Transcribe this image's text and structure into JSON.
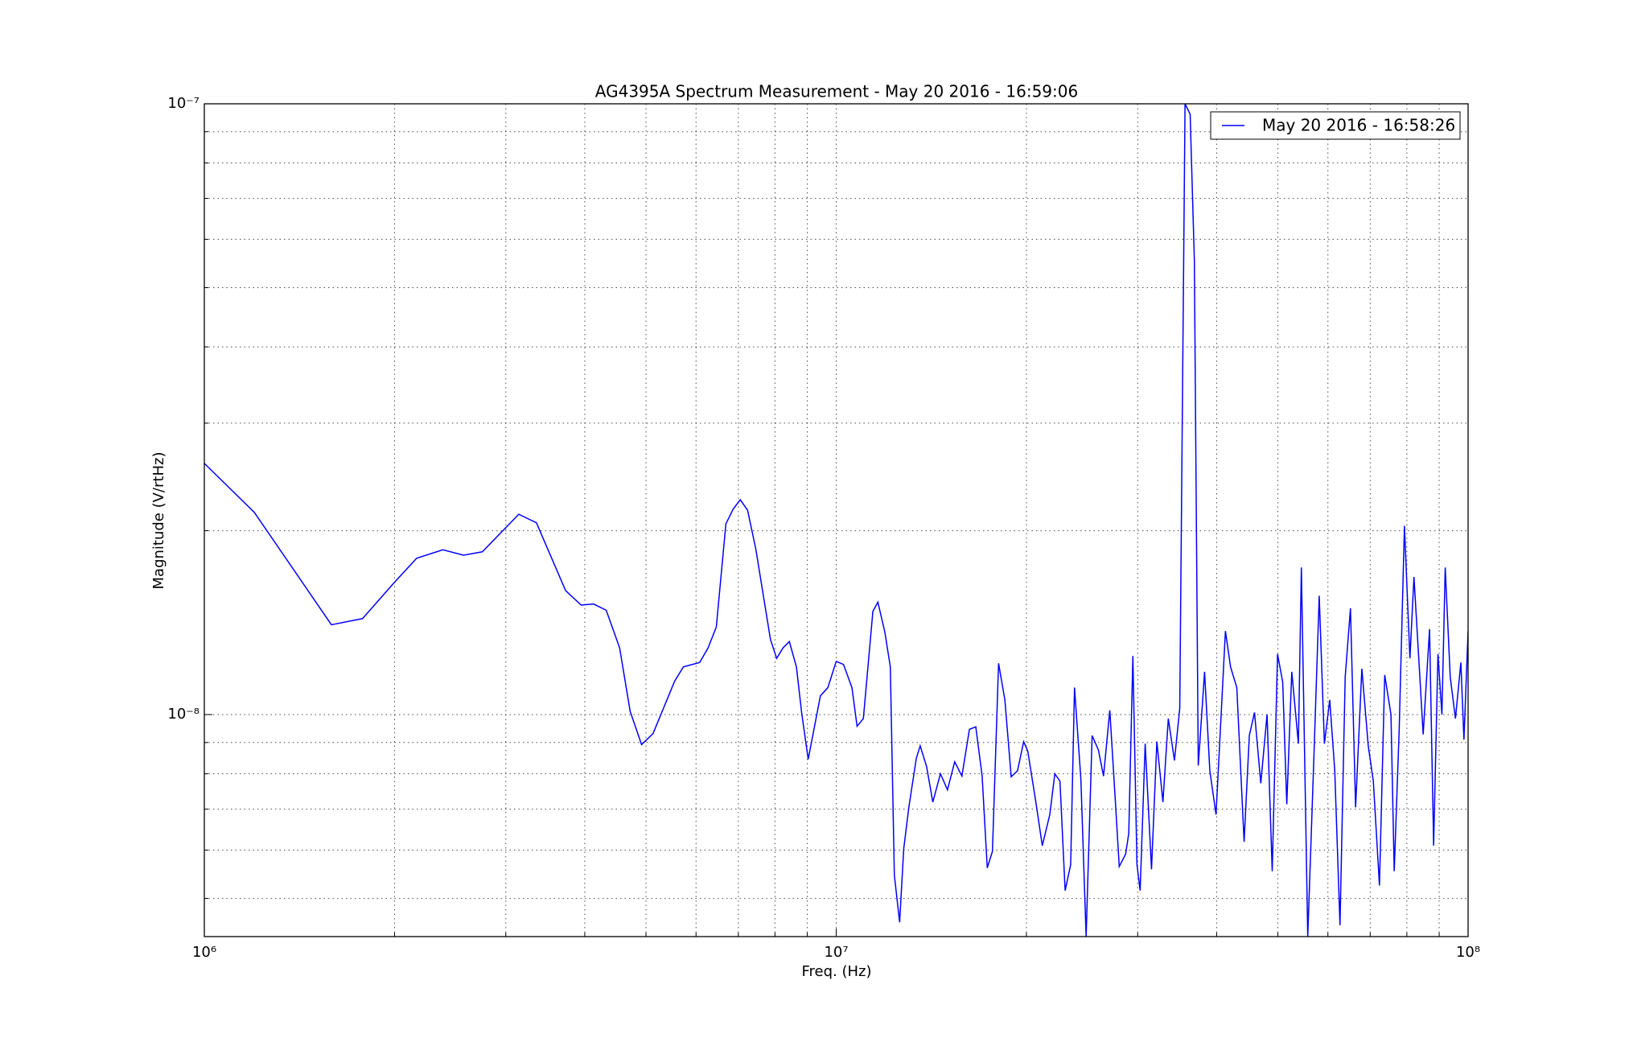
{
  "chart_data": {
    "type": "line",
    "title": "AG4395A Spectrum Measurement - May 20 2016 - 16:59:06",
    "xlabel": "Freq. (Hz)",
    "ylabel": "Magnitude (V/rtHz)",
    "xscale": "log",
    "yscale": "log",
    "grid": true,
    "legend": "upper right",
    "xlim": [
      1000000,
      100000000
    ],
    "ylim": [
      4.33e-09,
      1e-07
    ],
    "xticks": [
      {
        "value": 1000000,
        "label": "10⁶"
      },
      {
        "value": 10000000,
        "label": "10⁷"
      },
      {
        "value": 100000000,
        "label": "10⁸"
      }
    ],
    "yticks": [
      {
        "value": 1e-08,
        "label": "10⁻⁸"
      },
      {
        "value": 1e-07,
        "label": "10⁻⁷"
      }
    ],
    "xminorticks": [
      2000000,
      3000000,
      4000000,
      5000000,
      6000000,
      7000000,
      8000000,
      9000000,
      20000000,
      30000000,
      40000000,
      50000000,
      60000000,
      70000000,
      80000000,
      90000000
    ],
    "yminorticks": [
      5e-09,
      6e-09,
      7e-09,
      8e-09,
      9e-09,
      2e-08,
      3e-08,
      4e-08,
      5e-08,
      6e-08,
      7e-08,
      8e-08,
      9e-08
    ],
    "x": [
      1000000,
      1200000,
      1589000,
      1780000,
      1994000,
      2168000,
      2385000,
      2572000,
      2754000,
      3145000,
      3354000,
      3730000,
      3948000,
      4131000,
      4325000,
      4542000,
      4720000,
      4920000,
      5130000,
      5550000,
      5730000,
      6080000,
      6270000,
      6460000,
      6690000,
      6870000,
      7050000,
      7240000,
      7460000,
      7870000,
      8050000,
      8240000,
      8430000,
      8650000,
      8820000,
      9030000,
      9440000,
      9700000,
      10000000,
      10270000,
      10590000,
      10790000,
      11040000,
      11430000,
      11640000,
      11940000,
      12180000,
      12360000,
      12600000,
      12790000,
      13030000,
      13390000,
      13580000,
      13900000,
      14220000,
      14620000,
      15000000,
      15400000,
      15810000,
      16250000,
      16630000,
      17020000,
      17340000,
      17670000,
      18070000,
      18490000,
      18920000,
      19360000,
      19800000,
      20100000,
      20700000,
      21190000,
      21780000,
      22180000,
      22600000,
      23030000,
      23500000,
      23830000,
      24390000,
      24860000,
      25410000,
      26000000,
      26490000,
      27100000,
      27640000,
      28050000,
      28710000,
      29040000,
      29480000,
      29920000,
      30270000,
      30830000,
      31550000,
      32170000,
      32890000,
      33540000,
      34300000,
      34970000,
      35650000,
      36320000,
      36880000,
      37410000,
      38280000,
      39020000,
      39910000,
      40550000,
      41300000,
      42080000,
      43050000,
      44210000,
      45060000,
      45920000,
      46980000,
      48070000,
      48980000,
      49940000,
      50890000,
      51650000,
      52600000,
      53880000,
      54470000,
      55750000,
      57020000,
      58130000,
      59240000,
      60400000,
      61520000,
      62700000,
      63900000,
      65140000,
      66370000,
      67900000,
      69500000,
      70800000,
      72400000,
      73800000,
      75500000,
      76400000,
      77800000,
      79300000,
      80900000,
      82100000,
      83700000,
      84900000,
      86900000,
      88200000,
      89600000,
      90900000,
      92000000,
      93700000,
      95500000,
      97400000,
      98500000,
      100000000
    ],
    "series": [
      {
        "name": "May 20 2016 - 16:58:26",
        "color": "#0000ff",
        "values": [
          2.578e-08,
          2.143e-08,
          1.403e-08,
          1.436e-08,
          1.641e-08,
          1.803e-08,
          1.861e-08,
          1.824e-08,
          1.847e-08,
          2.128e-08,
          2.061e-08,
          1.596e-08,
          1.511e-08,
          1.517e-08,
          1.482e-08,
          1.286e-08,
          1.012e-08,
          8.93e-09,
          9.31e-09,
          1.134e-08,
          1.197e-08,
          1.217e-08,
          1.286e-08,
          1.391e-08,
          2.052e-08,
          2.17e-08,
          2.248e-08,
          2.161e-08,
          1.867e-08,
          1.327e-08,
          1.236e-08,
          1.286e-08,
          1.317e-08,
          1.197e-08,
          1.004e-08,
          8.45e-09,
          1.073e-08,
          1.107e-08,
          1.222e-08,
          1.208e-08,
          1.107e-08,
          9.57e-09,
          9.85e-09,
          1.476e-08,
          1.528e-08,
          1.364e-08,
          1.197e-08,
          5.46e-09,
          4.57e-09,
          6.03e-09,
          7.05e-09,
          8.48e-09,
          8.89e-09,
          8.22e-09,
          7.19e-09,
          8e-09,
          7.53e-09,
          8.37e-09,
          7.93e-09,
          9.46e-09,
          9.55e-09,
          7.93e-09,
          5.61e-09,
          5.97e-09,
          1.213e-08,
          1.057e-08,
          7.91e-09,
          8.09e-09,
          9.03e-09,
          8.71e-09,
          7.19e-09,
          6.1e-09,
          6.86e-09,
          8e-09,
          7.78e-09,
          5.15e-09,
          5.68e-09,
          1.107e-08,
          7.84e-09,
          4.33e-09,
          9.24e-09,
          8.75e-09,
          7.93e-09,
          1.016e-08,
          7.28e-09,
          5.64e-09,
          5.91e-09,
          6.39e-09,
          1.247e-08,
          5.68e-09,
          5.15e-09,
          8.96e-09,
          5.58e-09,
          9.03e-09,
          7.19e-09,
          9.85e-09,
          8.41e-09,
          1.024e-08,
          1e-07,
          9.61e-08,
          5.55e-08,
          8.25e-09,
          1.175e-08,
          8.09e-09,
          6.86e-09,
          9.46e-09,
          1.37e-08,
          1.197e-08,
          1.107e-08,
          6.19e-09,
          9.24e-09,
          1.008e-08,
          7.72e-09,
          1e-08,
          5.54e-09,
          1.256e-08,
          1.13e-08,
          7.13e-09,
          1.175e-08,
          8.96e-09,
          1.741e-08,
          4.33e-09,
          8.55e-09,
          1.565e-08,
          8.96e-09,
          1.057e-08,
          8.09e-09,
          4.52e-09,
          1.152e-08,
          1.493e-08,
          7.05e-09,
          1.189e-08,
          8.89e-09,
          7.78e-09,
          5.25e-09,
          1.161e-08,
          1e-08,
          5.54e-09,
          9.46e-09,
          2.037e-08,
          1.236e-08,
          1.68e-08,
          1.197e-08,
          9.28e-09,
          1.38e-08,
          6.1e-09,
          1.256e-08,
          1e-08,
          1.741e-08,
          1.152e-08,
          9.85e-09,
          1.217e-08,
          9.1e-09,
          1.37e-08
        ]
      }
    ]
  }
}
